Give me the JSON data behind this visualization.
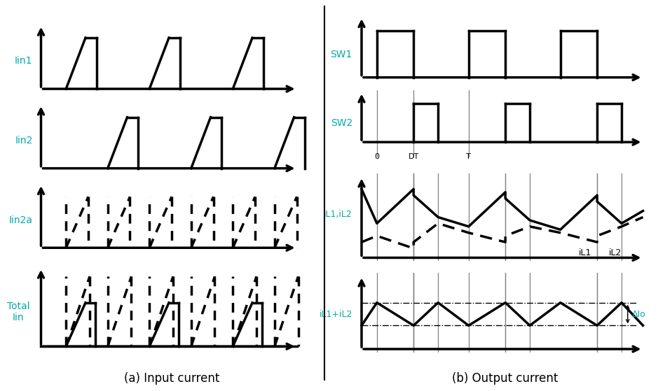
{
  "fig_width": 9.92,
  "fig_height": 5.68,
  "bg_color": "#ffffff",
  "cyan_color": "#00aaaa",
  "caption_a": "(a) Input current",
  "caption_b": "(b) Output current",
  "label_lin1": "Iin1",
  "label_lin2": "Iin2",
  "label_lin2a": "Iin2a",
  "label_total": "Total\nIin",
  "label_sw1": "SW1",
  "label_sw2": "SW2",
  "label_il12": "iL1,iL2",
  "label_il1il2": "iL1+iL2",
  "label_il1": "iL1",
  "label_il2": "iL2",
  "label_delta": "ΔIo",
  "label_0": "0",
  "label_DT": "DT",
  "label_T": "T"
}
